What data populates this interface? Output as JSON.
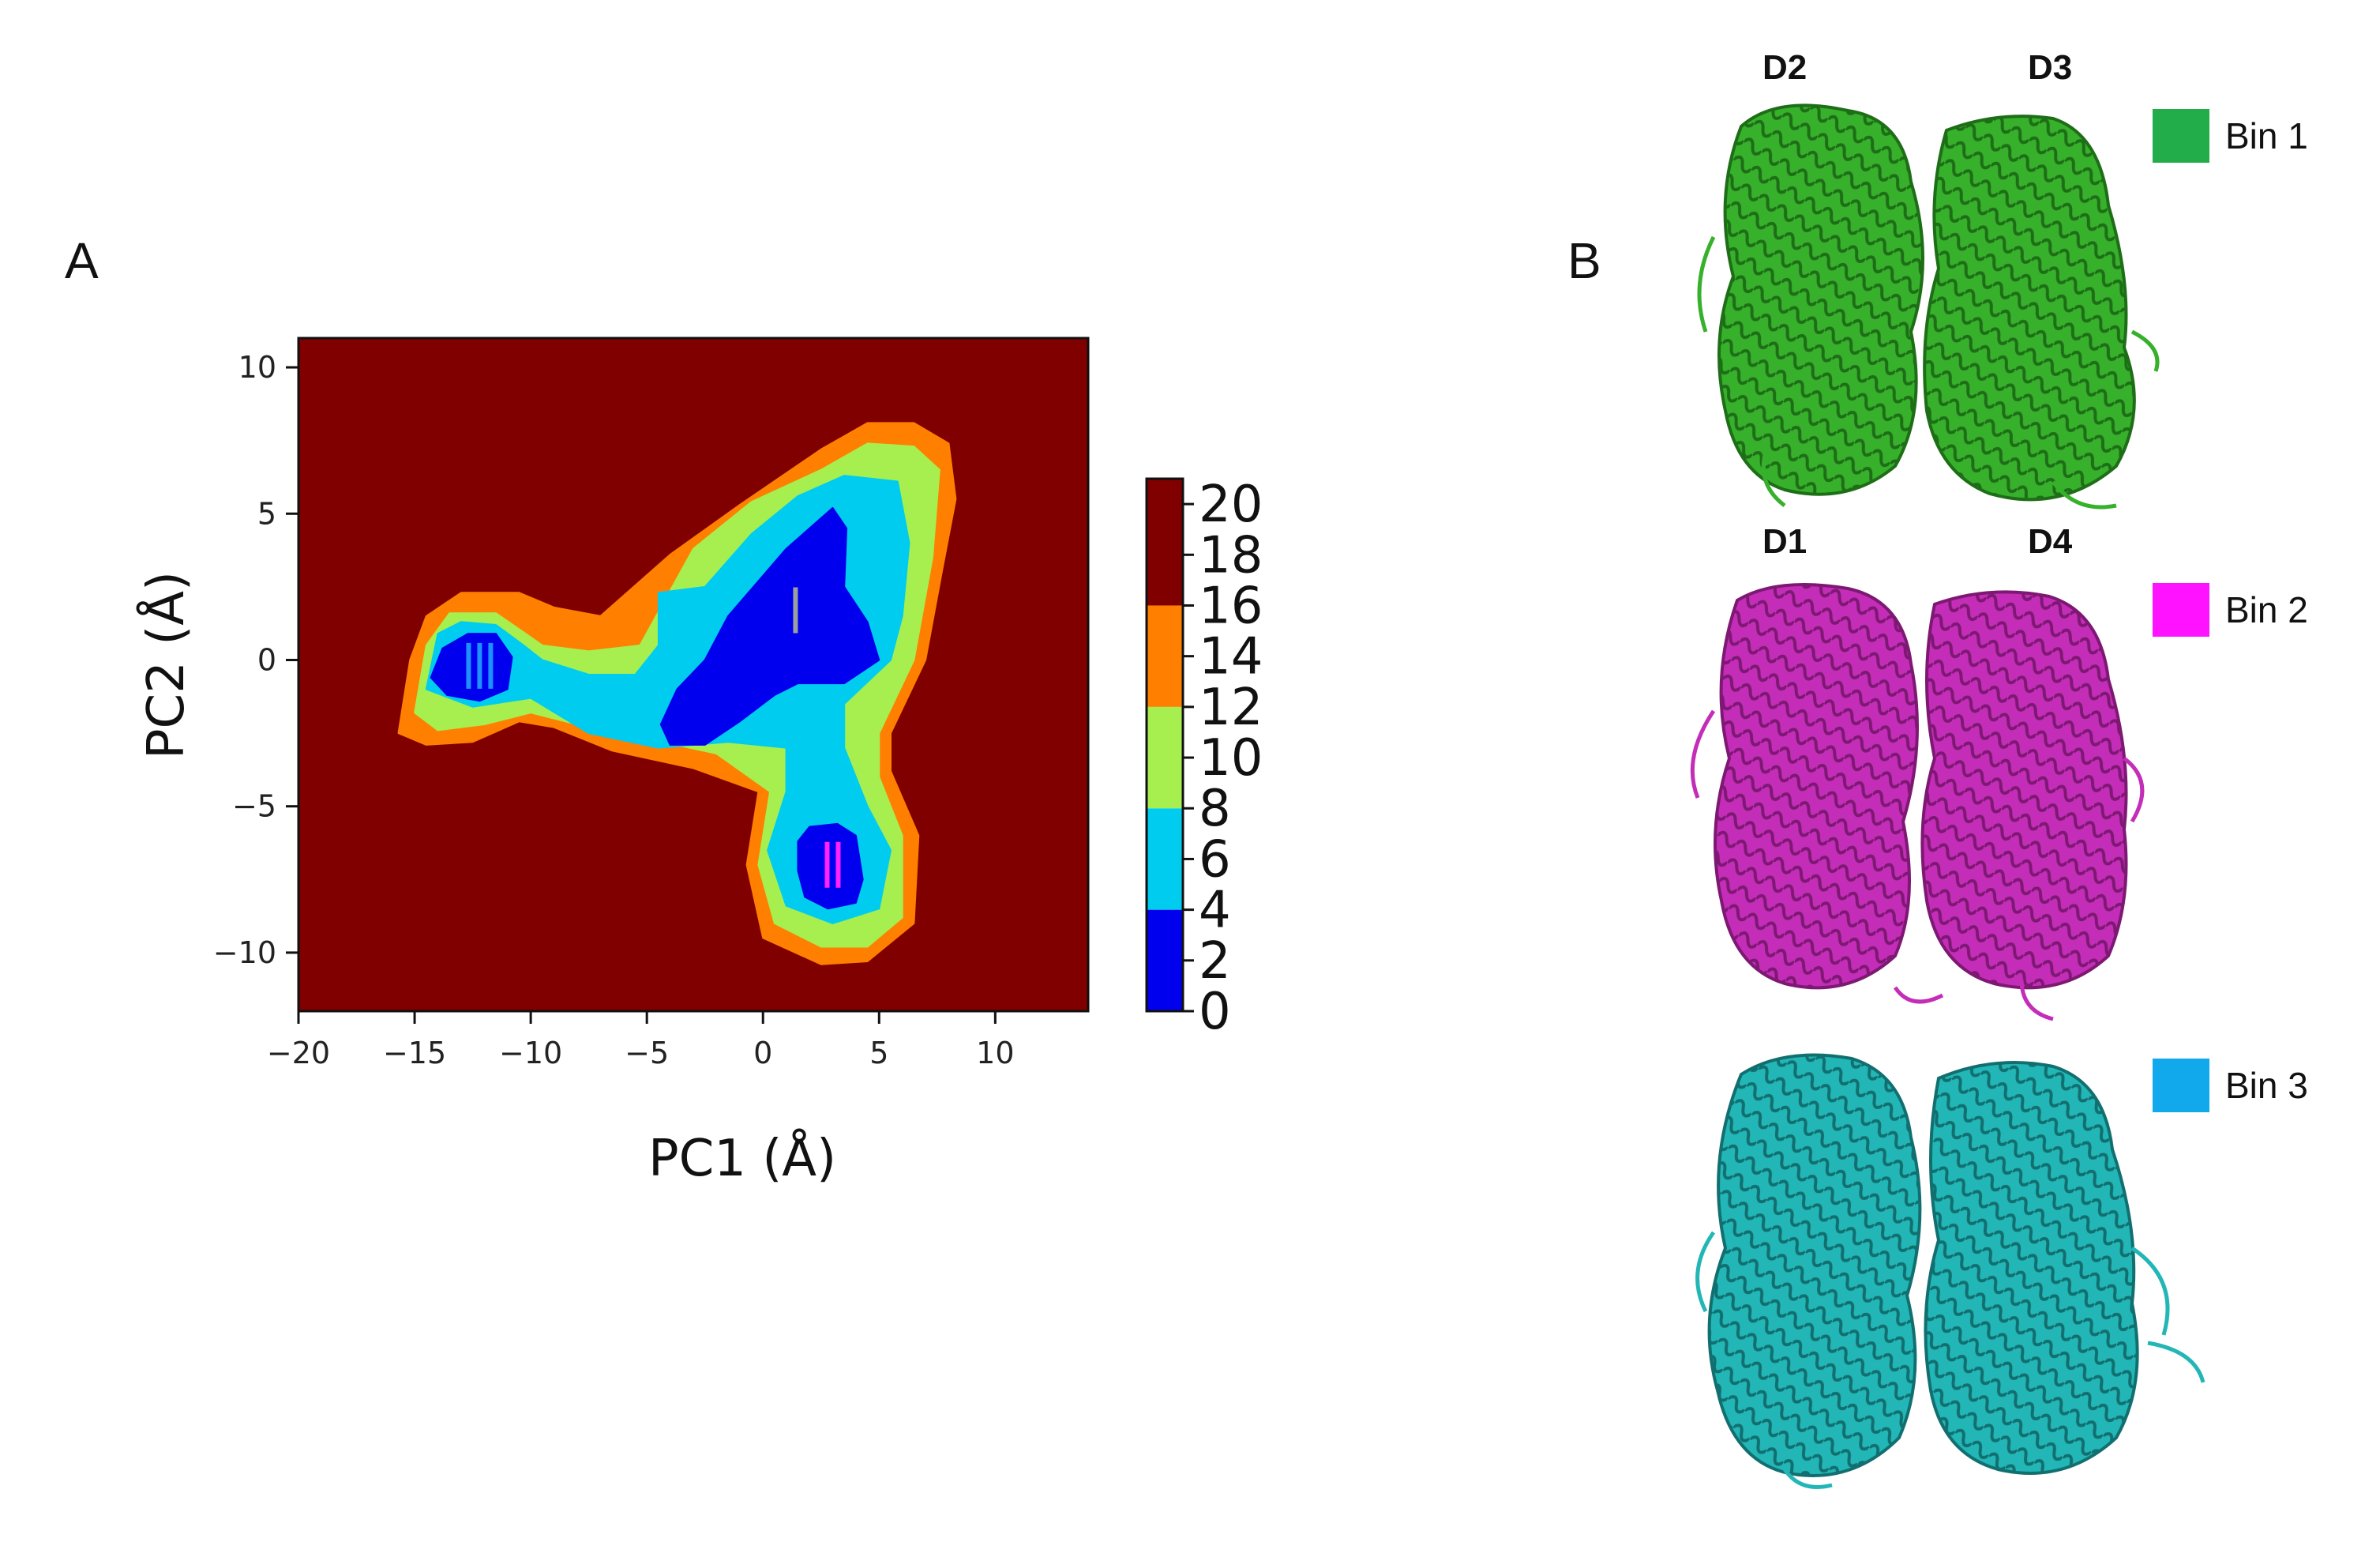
{
  "panels": {
    "a_label": "A",
    "b_label": "B"
  },
  "chart_data": {
    "type": "heatmap",
    "title": "",
    "xlabel": "PC1 (Å)",
    "ylabel": "PC2 (Å)",
    "xlim": [
      -20,
      14
    ],
    "ylim": [
      -12,
      11
    ],
    "xticks": [
      -20,
      -15,
      -10,
      -5,
      0,
      5,
      10
    ],
    "yticks": [
      -10,
      -5,
      0,
      5,
      10
    ],
    "xtick_labels": [
      "−20",
      "−15",
      "−10",
      "−5",
      "0",
      "5",
      "10"
    ],
    "ytick_labels": [
      "−10",
      "−5",
      "0",
      "5",
      "10"
    ],
    "colorbar": {
      "ticks": [
        0,
        2,
        4,
        6,
        8,
        10,
        12,
        14,
        16,
        18,
        20
      ],
      "tick_labels": [
        "0",
        "2",
        "4",
        "6",
        "8",
        "10",
        "12",
        "14",
        "16",
        "18",
        "20"
      ],
      "levels": [
        {
          "min": 0,
          "max": 4,
          "color": "#0000ee"
        },
        {
          "min": 4,
          "max": 8,
          "color": "#00ccf0"
        },
        {
          "min": 8,
          "max": 12,
          "color": "#a6ef4f"
        },
        {
          "min": 12,
          "max": 16,
          "color": "#ff7f00"
        },
        {
          "min": 16,
          "max": 21,
          "color": "#800000"
        }
      ]
    },
    "background_color": "#800000",
    "contours": [
      {
        "level": 16,
        "color": "#ff7f00",
        "points": [
          [
            -15.7,
            -2.5
          ],
          [
            -15.2,
            0
          ],
          [
            -14.5,
            1.5
          ],
          [
            -13,
            2.3
          ],
          [
            -10.5,
            2.3
          ],
          [
            -9,
            1.8
          ],
          [
            -7,
            1.5
          ],
          [
            -4,
            3.6
          ],
          [
            -1,
            5.3
          ],
          [
            2.5,
            7.2
          ],
          [
            4.5,
            8.1
          ],
          [
            6.5,
            8.1
          ],
          [
            8,
            7.4
          ],
          [
            8.3,
            5.5
          ],
          [
            7.7,
            3
          ],
          [
            7,
            0
          ],
          [
            5.5,
            -2.5
          ],
          [
            5.5,
            -3.8
          ],
          [
            6.7,
            -6
          ],
          [
            6.5,
            -9
          ],
          [
            4.5,
            -10.3
          ],
          [
            2.5,
            -10.4
          ],
          [
            0,
            -9.5
          ],
          [
            -0.7,
            -7
          ],
          [
            -0.2,
            -4.5
          ],
          [
            -3,
            -3.7
          ],
          [
            -6.5,
            -3.1
          ],
          [
            -9,
            -2.3
          ],
          [
            -10.5,
            -2.1
          ],
          [
            -12.5,
            -2.8
          ],
          [
            -14.5,
            -2.9
          ]
        ]
      },
      {
        "level": 12,
        "color": "#a6ef4f",
        "points": [
          [
            -15,
            -1.8
          ],
          [
            -14.5,
            0.5
          ],
          [
            -13.5,
            1.6
          ],
          [
            -11.5,
            1.6
          ],
          [
            -10.4,
            1
          ],
          [
            -9.5,
            0.5
          ],
          [
            -7.5,
            0.3
          ],
          [
            -5.3,
            0.5
          ],
          [
            -3,
            3.8
          ],
          [
            -0.5,
            5.4
          ],
          [
            2.5,
            6.5
          ],
          [
            4.5,
            7.4
          ],
          [
            6.5,
            7.3
          ],
          [
            7.6,
            6.5
          ],
          [
            7.3,
            3.5
          ],
          [
            6.5,
            0
          ],
          [
            5,
            -2.5
          ],
          [
            5,
            -4
          ],
          [
            6,
            -6
          ],
          [
            6,
            -8.8
          ],
          [
            4.5,
            -9.8
          ],
          [
            2.5,
            -9.8
          ],
          [
            0.5,
            -9
          ],
          [
            -0.2,
            -7
          ],
          [
            0.3,
            -4.5
          ],
          [
            -2,
            -3.2
          ],
          [
            -5.5,
            -2.6
          ],
          [
            -8,
            -2.2
          ],
          [
            -10,
            -1.8
          ],
          [
            -12,
            -2.2
          ],
          [
            -14,
            -2.4
          ]
        ]
      },
      {
        "level": 8,
        "color": "#00ccf0",
        "points": [
          [
            -14.5,
            -1
          ],
          [
            -14,
            0.9
          ],
          [
            -13,
            1.3
          ],
          [
            -11.5,
            1.2
          ],
          [
            -10.3,
            0.5
          ],
          [
            -9.5,
            0
          ],
          [
            -7.5,
            -0.5
          ],
          [
            -5.5,
            -0.5
          ],
          [
            -4.5,
            0.5
          ],
          [
            -4.5,
            2.3
          ],
          [
            -2.5,
            2.5
          ],
          [
            -0.5,
            4.3
          ],
          [
            1.5,
            5.6
          ],
          [
            3.5,
            6.3
          ],
          [
            5.8,
            6.1
          ],
          [
            6.3,
            4
          ],
          [
            6,
            1.5
          ],
          [
            5.5,
            0
          ],
          [
            3.5,
            -1.5
          ],
          [
            3.5,
            -3
          ],
          [
            4.5,
            -5
          ],
          [
            5.5,
            -6.5
          ],
          [
            5,
            -8.5
          ],
          [
            3,
            -9
          ],
          [
            1,
            -8.4
          ],
          [
            0.2,
            -6.5
          ],
          [
            1,
            -4.5
          ],
          [
            1,
            -3
          ],
          [
            -1.5,
            -2.8
          ],
          [
            -4.5,
            -3
          ],
          [
            -7.5,
            -2.5
          ],
          [
            -10,
            -1.3
          ],
          [
            -12.5,
            -1.6
          ]
        ]
      },
      {
        "level": 4,
        "color": "#0000ee",
        "points": [
          [
            -3.7,
            -1
          ],
          [
            -2.5,
            0
          ],
          [
            -1.5,
            1.5
          ],
          [
            -0.2,
            2.7
          ],
          [
            1,
            3.8
          ],
          [
            2,
            4.5
          ],
          [
            3,
            5.2
          ],
          [
            3.6,
            4.5
          ],
          [
            3.5,
            2.5
          ],
          [
            4.5,
            1.3
          ],
          [
            5,
            0
          ],
          [
            3.5,
            -0.8
          ],
          [
            1.5,
            -0.8
          ],
          [
            0.5,
            -1.2
          ],
          [
            -1,
            -2.1
          ],
          [
            -2.5,
            -2.9
          ],
          [
            -4,
            -2.9
          ],
          [
            -4.4,
            -2.2
          ]
        ]
      },
      {
        "level": 4,
        "color": "#0000ee",
        "points": [
          [
            -14.3,
            -0.6
          ],
          [
            -13.8,
            0.4
          ],
          [
            -12.7,
            0.9
          ],
          [
            -11.5,
            0.9
          ],
          [
            -10.8,
            0.1
          ],
          [
            -11,
            -1
          ],
          [
            -12.2,
            -1.4
          ],
          [
            -13.6,
            -1.2
          ]
        ]
      },
      {
        "level": 4,
        "color": "#0000ee",
        "points": [
          [
            1.5,
            -6.2
          ],
          [
            2,
            -5.7
          ],
          [
            3.2,
            -5.6
          ],
          [
            4,
            -6
          ],
          [
            4.3,
            -7.5
          ],
          [
            4,
            -8.3
          ],
          [
            2.8,
            -8.5
          ],
          [
            1.8,
            -8.1
          ],
          [
            1.5,
            -7.2
          ]
        ]
      }
    ],
    "annotations": [
      {
        "text": "I",
        "x": 1.4,
        "y": 1.7,
        "color": "#9aa0a0"
      },
      {
        "text": "II",
        "x": 3.0,
        "y": -7.0,
        "color": "#ff22ff"
      },
      {
        "text": "III",
        "x": -12.2,
        "y": -0.2,
        "color": "#1e90ff"
      }
    ]
  },
  "structures": {
    "bin1": {
      "legend": "Bin 1",
      "color": "#22ad4a",
      "protein_color": "#37b02b",
      "dark_color": "#1d6e17",
      "labels": [
        "D2",
        "D3"
      ]
    },
    "bin2": {
      "legend": "Bin 2",
      "color": "#ff12ff",
      "protein_color": "#c42db8",
      "dark_color": "#7d1873",
      "labels": [
        "D1",
        "D4"
      ]
    },
    "bin3": {
      "legend": "Bin 3",
      "color": "#12a8ec",
      "protein_color": "#23b6b6",
      "dark_color": "#126f70"
    }
  }
}
